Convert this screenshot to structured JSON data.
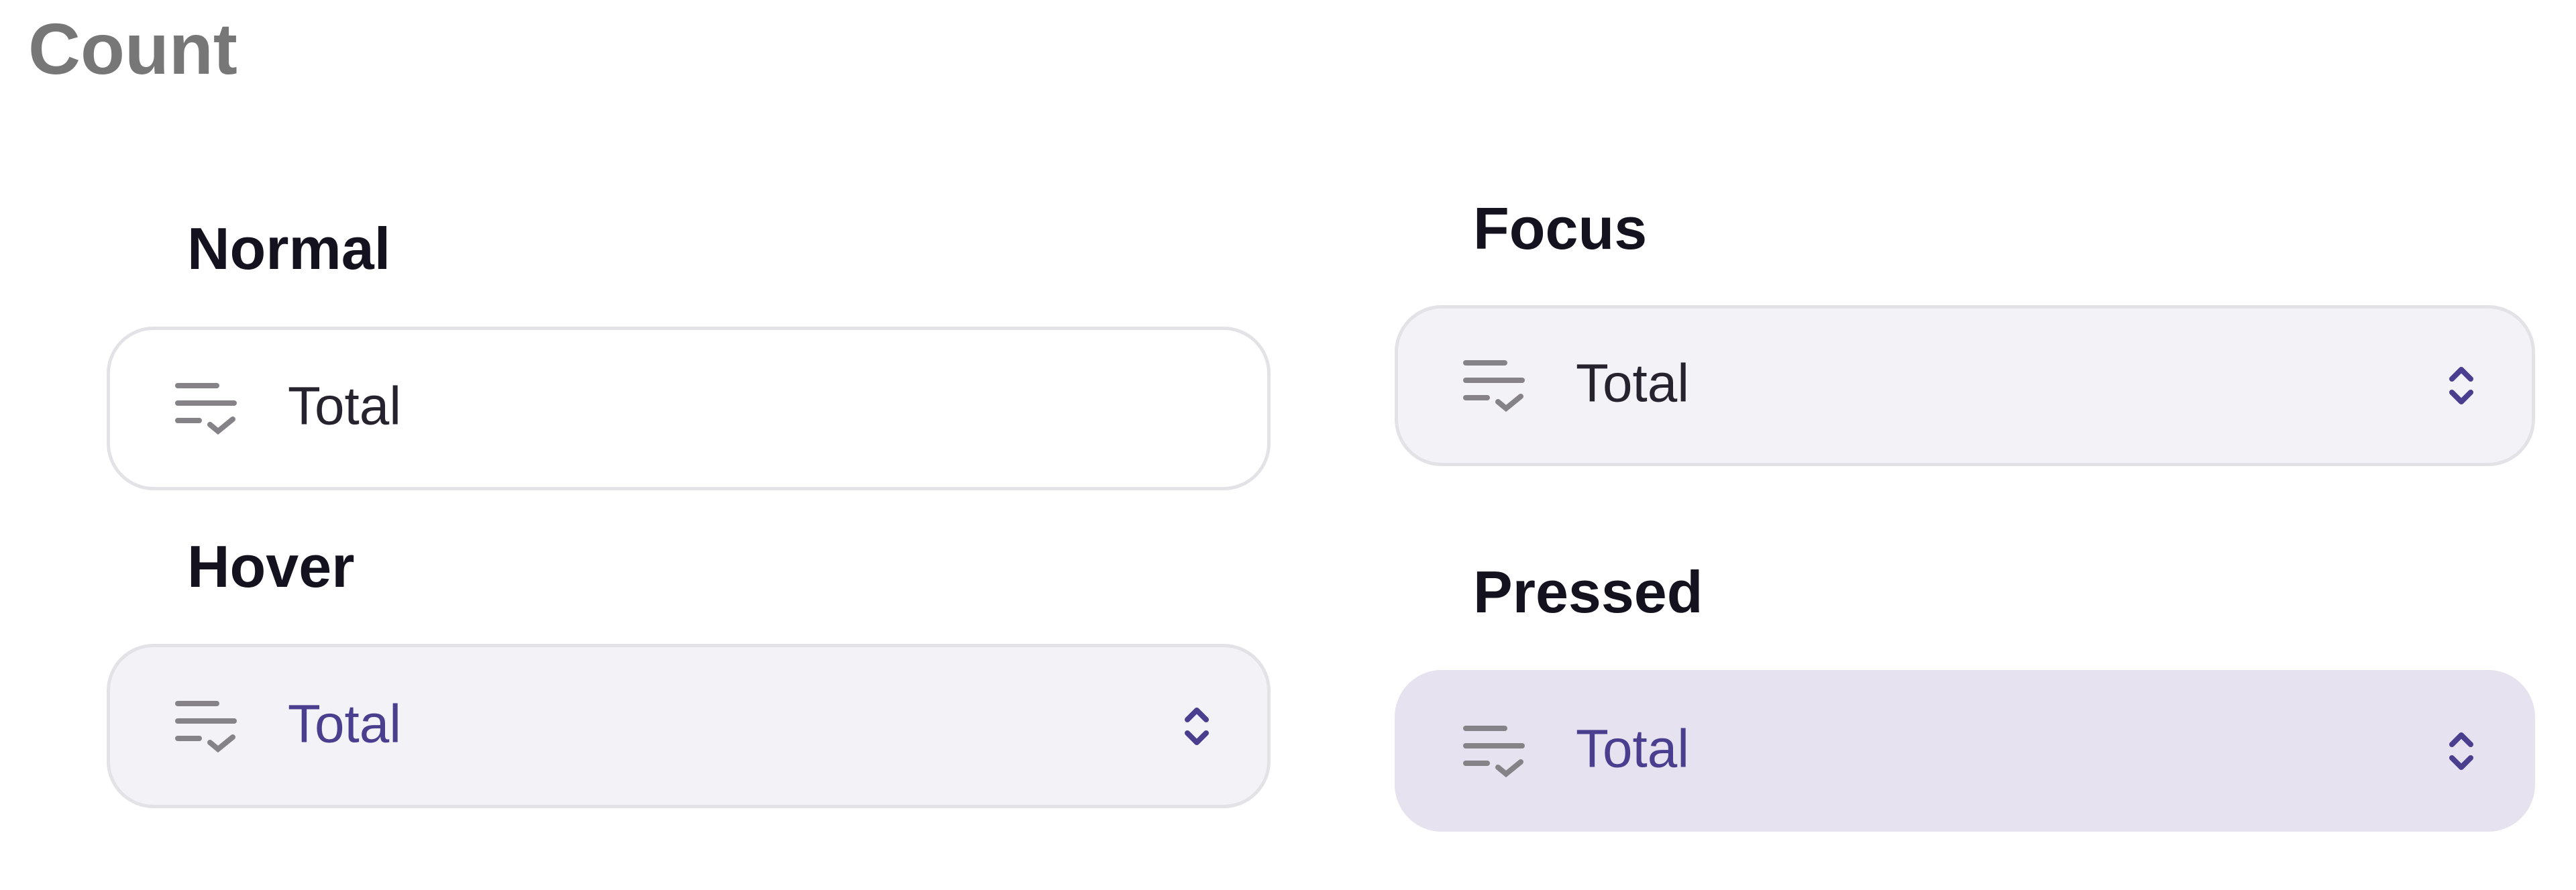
{
  "title": "Count",
  "colors": {
    "accent": "#4a3f8f",
    "text": "#26232e",
    "icon": "#858388",
    "hover_bg": "#f3f2f7",
    "pressed_bg": "#e6e2ef",
    "border": "#e3e2e7"
  },
  "states": {
    "normal": {
      "label": "Normal",
      "value": "Total",
      "icon": "list-check-icon"
    },
    "hover": {
      "label": "Hover",
      "value": "Total",
      "icon": "list-check-icon",
      "chevron": "chevron-up-down-icon"
    },
    "focus": {
      "label": "Focus",
      "value": "Total",
      "icon": "list-check-icon",
      "chevron": "chevron-up-down-icon"
    },
    "pressed": {
      "label": "Pressed",
      "value": "Total",
      "icon": "list-check-icon",
      "chevron": "chevron-up-down-icon"
    }
  }
}
